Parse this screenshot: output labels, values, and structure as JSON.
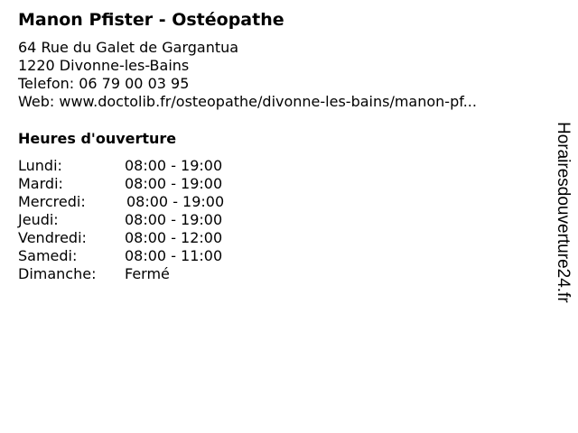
{
  "business": {
    "name": "Manon Pfister - Ostéopathe",
    "address_line1": "64 Rue du Galet de Gargantua",
    "address_line2": "1220 Divonne-les-Bains",
    "phone": "Telefon: 06 79 00 03 95",
    "web": "Web: www.doctolib.fr/osteopathe/divonne-les-bains/manon-pf..."
  },
  "hours": {
    "heading": "Heures d'ouverture",
    "rows": [
      {
        "day": "Lundi:",
        "time": "08:00 - 19:00"
      },
      {
        "day": "Mardi:",
        "time": "08:00 - 19:00"
      },
      {
        "day": "Mercredi:",
        "time": "08:00 - 19:00"
      },
      {
        "day": "Jeudi:",
        "time": "08:00 - 19:00"
      },
      {
        "day": "Vendredi:",
        "time": "08:00 - 12:00"
      },
      {
        "day": "Samedi:",
        "time": "08:00 - 11:00"
      },
      {
        "day": "Dimanche:",
        "time": "Fermé"
      }
    ]
  },
  "watermark": "Horairesdouverture24.fr"
}
